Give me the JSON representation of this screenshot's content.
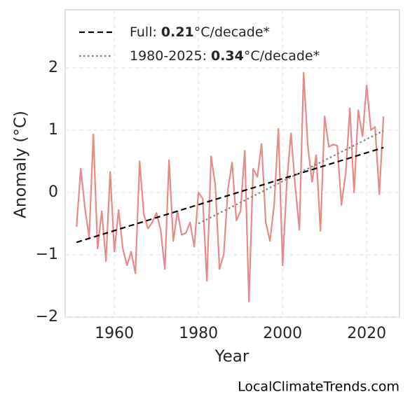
{
  "chart_data": {
    "type": "line",
    "xlabel": "Year",
    "ylabel": "Anomaly (°C)",
    "source": "LocalClimateTrends.com",
    "xlim": [
      1948.3,
      2027.8
    ],
    "xticks": [
      1960,
      1980,
      2000,
      2020
    ],
    "ylim": [
      -2,
      2.93
    ],
    "yticks": [
      {
        "value": -2,
        "label": "−2"
      },
      {
        "value": -1,
        "label": "−1"
      },
      0,
      1,
      2
    ],
    "grid": true,
    "legend_position": "upper left",
    "series": [
      {
        "color": "#e8898a",
        "x": [
          1951,
          1952,
          1953,
          1954,
          1955,
          1956,
          1957,
          1958,
          1959,
          1960,
          1961,
          1962,
          1963,
          1964,
          1965,
          1966,
          1967,
          1968,
          1969,
          1970,
          1971,
          1972,
          1973,
          1974,
          1975,
          1976,
          1977,
          1978,
          1979,
          1980,
          1981,
          1982,
          1983,
          1984,
          1985,
          1986,
          1987,
          1988,
          1989,
          1990,
          1991,
          1992,
          1993,
          1994,
          1995,
          1996,
          1997,
          1998,
          1999,
          2000,
          2001,
          2002,
          2003,
          2004,
          2005,
          2006,
          2007,
          2008,
          2009,
          2010,
          2011,
          2012,
          2013,
          2014,
          2015,
          2016,
          2017,
          2018,
          2019,
          2020,
          2021,
          2022,
          2023,
          2024
        ],
        "values": [
          -0.55,
          0.38,
          -0.25,
          -0.72,
          0.93,
          -0.9,
          -0.3,
          -1.1,
          0.33,
          -0.95,
          -0.28,
          -0.9,
          -1.17,
          -0.95,
          -1.3,
          0.5,
          -0.35,
          -0.58,
          -0.48,
          -0.33,
          -0.6,
          -1.23,
          0.52,
          -0.78,
          -0.3,
          -0.68,
          -0.65,
          -0.48,
          -0.87,
          0.0,
          -0.1,
          -1.42,
          0.58,
          0.12,
          -1.23,
          -1.0,
          0.05,
          0.48,
          -0.45,
          -0.3,
          0.67,
          -1.75,
          0.38,
          0.25,
          0.78,
          -0.48,
          -0.78,
          -0.2,
          1.02,
          -1.17,
          0.15,
          0.95,
          0.1,
          -0.6,
          1.92,
          0.75,
          0.17,
          0.6,
          -0.62,
          1.22,
          0.73,
          0.77,
          0.75,
          -0.2,
          0.3,
          1.35,
          0.0,
          1.32,
          0.9,
          1.72,
          1.0,
          1.05,
          -0.03,
          1.22
        ]
      },
      {
        "label": "Full:",
        "rate": "0.21",
        "unit": "°C/decade*",
        "color": "#000000",
        "dash": "dashed",
        "x": [
          1951,
          2024
        ],
        "values": [
          -0.8,
          0.72
        ]
      },
      {
        "label": "1980-2025:",
        "rate": "0.34",
        "unit": "°C/decade*",
        "color": "#808080",
        "dash": "dotted",
        "x": [
          1980,
          2024
        ],
        "values": [
          -0.5,
          0.99
        ]
      }
    ]
  }
}
